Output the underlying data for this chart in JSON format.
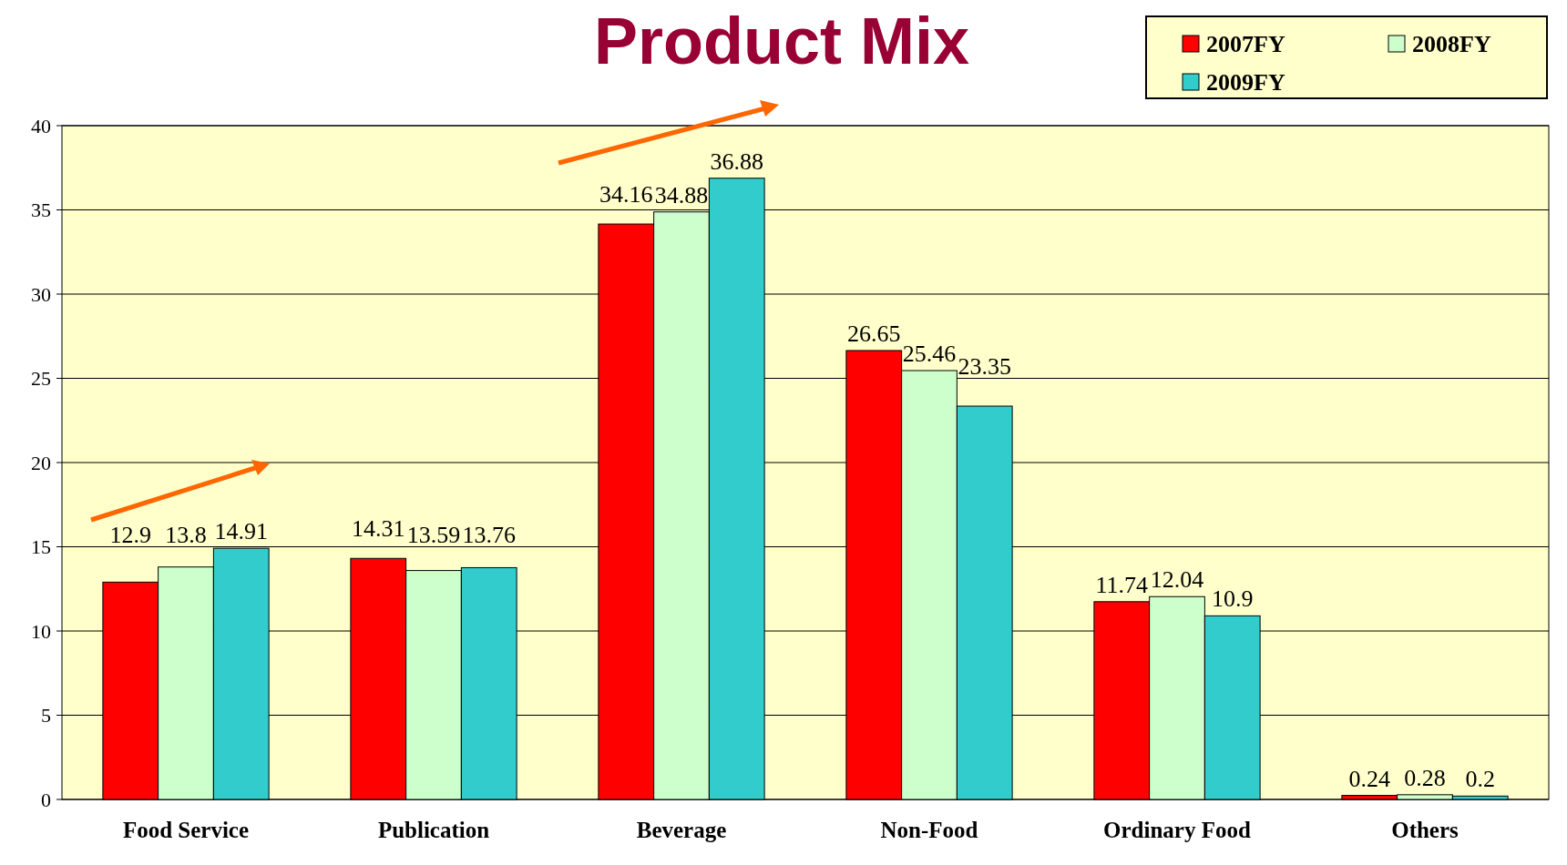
{
  "chart_data": {
    "type": "bar",
    "title": "Product Mix",
    "categories": [
      "Food Service",
      "Publication",
      "Beverage",
      "Non-Food",
      "Ordinary Food",
      "Others"
    ],
    "series": [
      {
        "name": "2007FY",
        "color": "#ff0000",
        "values": [
          12.9,
          14.31,
          34.16,
          26.65,
          11.74,
          0.24
        ]
      },
      {
        "name": "2008FY",
        "color": "#ccffcc",
        "values": [
          13.8,
          13.59,
          34.88,
          25.46,
          12.04,
          0.28
        ]
      },
      {
        "name": "2009FY",
        "color": "#33cccc",
        "values": [
          14.91,
          13.76,
          36.88,
          23.35,
          10.9,
          0.2
        ]
      }
    ],
    "ylim": [
      0,
      40
    ],
    "yticks": [
      0,
      5,
      10,
      15,
      20,
      25,
      30,
      35,
      40
    ],
    "grid": "y",
    "legend": "top right",
    "data_labels": true
  }
}
